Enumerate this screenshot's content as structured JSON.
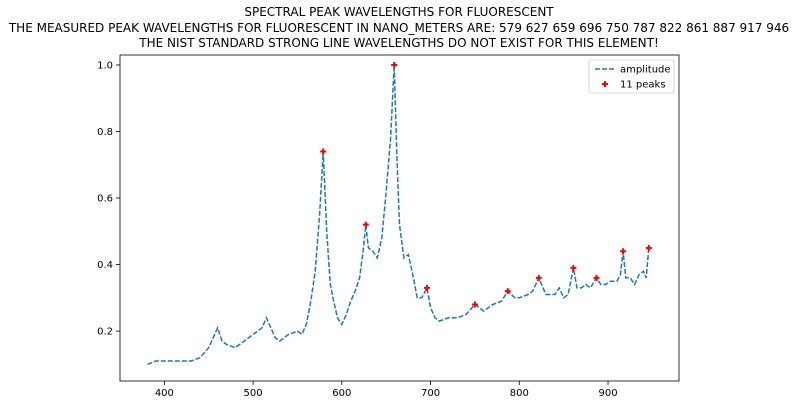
{
  "title_lines": [
    "SPECTRAL PEAK WAVELENGTHS FOR FLUORESCENT",
    "THE MEASURED PEAK WAVELENGTHS FOR FLUORESCENT IN NANO_METERS ARE: 579 627 659 696 750 787 822 861 887 917 946",
    "THE NIST STANDARD STRONG LINE WAVELENGTHS DO NOT EXIST FOR THIS ELEMENT!"
  ],
  "chart_data": {
    "type": "line",
    "title": "SPECTRAL PEAK WAVELENGTHS FOR FLUORESCENT",
    "xlabel": "",
    "ylabel": "",
    "xlim": [
      350,
      980
    ],
    "ylim": [
      0.05,
      1.03
    ],
    "xticks": [
      400,
      500,
      600,
      700,
      800,
      900
    ],
    "yticks": [
      0.2,
      0.4,
      0.6,
      0.8,
      1.0
    ],
    "ytick_labels": [
      "0.2",
      "0.4",
      "0.6",
      "0.8",
      "1.0"
    ],
    "grid": false,
    "legend_position": "top-right",
    "series": [
      {
        "name": "amplitude",
        "style": "dashed",
        "color": "#1f77b4",
        "x": [
          381,
          390,
          400,
          410,
          420,
          430,
          440,
          450,
          455,
          460,
          465,
          470,
          480,
          490,
          500,
          510,
          515,
          520,
          525,
          530,
          540,
          550,
          555,
          560,
          565,
          570,
          575,
          579,
          583,
          587,
          590,
          595,
          600,
          605,
          610,
          615,
          620,
          624,
          627,
          630,
          635,
          640,
          645,
          650,
          655,
          659,
          662,
          665,
          670,
          675,
          680,
          685,
          690,
          696,
          700,
          705,
          710,
          720,
          730,
          740,
          750,
          760,
          770,
          780,
          787,
          795,
          800,
          810,
          815,
          822,
          830,
          840,
          845,
          850,
          855,
          861,
          865,
          870,
          875,
          880,
          887,
          892,
          897,
          903,
          910,
          914,
          917,
          920,
          925,
          930,
          935,
          940,
          943,
          946
        ],
        "y": [
          0.1,
          0.11,
          0.11,
          0.11,
          0.11,
          0.11,
          0.12,
          0.15,
          0.18,
          0.21,
          0.17,
          0.16,
          0.15,
          0.17,
          0.19,
          0.21,
          0.24,
          0.21,
          0.18,
          0.17,
          0.19,
          0.2,
          0.19,
          0.22,
          0.29,
          0.38,
          0.55,
          0.74,
          0.5,
          0.34,
          0.3,
          0.24,
          0.22,
          0.25,
          0.29,
          0.32,
          0.36,
          0.44,
          0.52,
          0.45,
          0.44,
          0.42,
          0.48,
          0.62,
          0.78,
          1.0,
          0.73,
          0.52,
          0.42,
          0.43,
          0.37,
          0.3,
          0.3,
          0.33,
          0.27,
          0.24,
          0.23,
          0.24,
          0.24,
          0.25,
          0.28,
          0.26,
          0.28,
          0.29,
          0.32,
          0.3,
          0.3,
          0.31,
          0.32,
          0.36,
          0.31,
          0.31,
          0.33,
          0.3,
          0.31,
          0.39,
          0.33,
          0.33,
          0.34,
          0.33,
          0.36,
          0.34,
          0.34,
          0.35,
          0.35,
          0.37,
          0.44,
          0.36,
          0.36,
          0.34,
          0.37,
          0.38,
          0.36,
          0.45
        ]
      },
      {
        "name": "11 peaks",
        "style": "marker-plus",
        "color": "#ff0000",
        "x": [
          579,
          627,
          659,
          696,
          750,
          787,
          822,
          861,
          887,
          917,
          946
        ],
        "y": [
          0.74,
          0.52,
          1.0,
          0.33,
          0.28,
          0.32,
          0.36,
          0.39,
          0.36,
          0.44,
          0.45
        ]
      }
    ]
  }
}
